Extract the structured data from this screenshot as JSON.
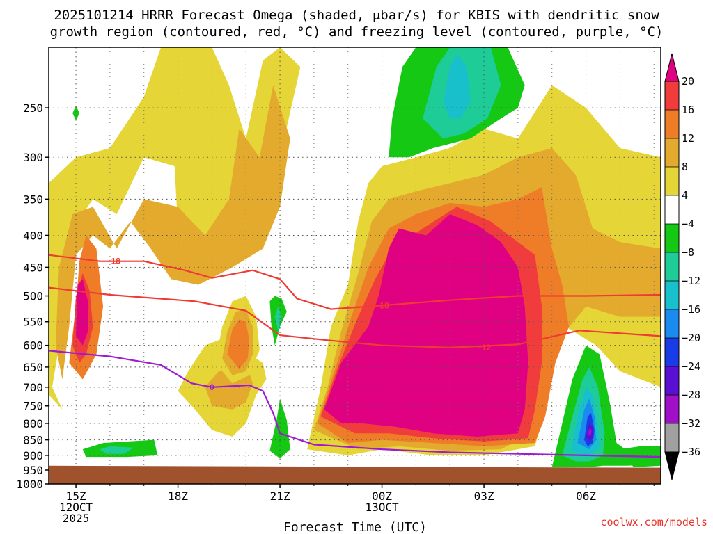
{
  "chart_data": {
    "type": "heatmap",
    "title_line1": "2025101214 HRRR Forecast Omega (shaded, μbar/s) for KBIS with dendritic snow",
    "title_line2": "growth region (contoured, red, °C) and freezing level (contoured, purple, °C)",
    "xlabel": "Forecast Time (UTC)",
    "ylabel": "",
    "credit": "coolwx.com/models",
    "y_axis": {
      "type": "pressure",
      "unit": "hPa",
      "range": [
        1000,
        200
      ],
      "ticks": [
        "250",
        "300",
        "350",
        "400",
        "450",
        "500",
        "550",
        "600",
        "650",
        "700",
        "750",
        "800",
        "850",
        "900",
        "950",
        "1000"
      ]
    },
    "x_axis": {
      "range_hours": [
        14.2,
        32.2
      ],
      "ticks": [
        {
          "hour": 15,
          "label": "15Z",
          "label2": "12OCT",
          "label3": "2025"
        },
        {
          "hour": 18,
          "label": "18Z"
        },
        {
          "hour": 21,
          "label": "21Z"
        },
        {
          "hour": 24,
          "label": "00Z",
          "label2": "13OCT"
        },
        {
          "hour": 27,
          "label": "03Z"
        },
        {
          "hour": 30,
          "label": "06Z"
        }
      ]
    },
    "colorbar": {
      "levels": [
        "20",
        "16",
        "12",
        "8",
        "4",
        "−4",
        "−8",
        "−12",
        "−16",
        "−20",
        "−24",
        "−28",
        "−32",
        "−36"
      ],
      "colors": [
        "#e00082",
        "#f03c3c",
        "#ef7d28",
        "#e3aa2e",
        "#e6d536",
        "#ffffff",
        "#14c814",
        "#1ecc98",
        "#18c0cc",
        "#1a8cf0",
        "#1a3ce6",
        "#5a10d2",
        "#a010c8",
        "#a0a0a0",
        "#000000"
      ]
    },
    "omega_fields": [
      {
        "name": "early-rise",
        "peak": 20,
        "center_hour": 15.0,
        "center_hpa": 520,
        "level_colors": [
          "#e6d536",
          "#e3aa2e",
          "#ef7d28",
          "#f03c3c",
          "#e00082"
        ]
      },
      {
        "name": "main-rise",
        "peak": 20,
        "center_hour": 25.8,
        "center_hpa": 620,
        "level_colors": [
          "#e6d536",
          "#e3aa2e",
          "#ef7d28",
          "#f03c3c",
          "#e00082"
        ]
      },
      {
        "name": "mid-rise",
        "peak": 20,
        "center_hour": 22.6,
        "center_hpa": 660,
        "level_colors": [
          "#e6d536",
          "#e3aa2e",
          "#ef7d28",
          "#f03c3c",
          "#e00082"
        ]
      },
      {
        "name": "small-rise",
        "peak": 20,
        "center_hour": 19.6,
        "center_hpa": 590,
        "level_colors": [
          "#e6d536",
          "#e3aa2e",
          "#ef7d28",
          "#f03c3c",
          "#e00082"
        ]
      },
      {
        "name": "sink-upper",
        "peak": -16,
        "center_hour": 26.0,
        "center_hpa": 235,
        "level_colors": [
          "#14c814",
          "#1ecc98",
          "#18c0cc"
        ]
      },
      {
        "name": "sink-lower",
        "peak": -32,
        "center_hour": 30.2,
        "center_hpa": 820,
        "level_colors": [
          "#14c814",
          "#1ecc98",
          "#18c0cc",
          "#1a8cf0",
          "#1a3ce6",
          "#5a10d2",
          "#a010c8"
        ]
      }
    ],
    "contours": [
      {
        "name": "dgz-top",
        "value": -18,
        "label": "−18",
        "color": "#ef3b34",
        "points": [
          [
            14.2,
            430
          ],
          [
            15.7,
            440
          ],
          [
            17.0,
            440
          ],
          [
            18.2,
            455
          ],
          [
            19.0,
            468
          ],
          [
            20.2,
            455
          ],
          [
            21.0,
            470
          ],
          [
            21.5,
            505
          ],
          [
            22.5,
            525
          ],
          [
            24.0,
            518
          ],
          [
            26.0,
            508
          ],
          [
            28.0,
            500
          ],
          [
            30.0,
            500
          ],
          [
            32.2,
            498
          ]
        ]
      },
      {
        "name": "dgz-bottom",
        "value": -12,
        "label": "−12",
        "color": "#ef3b34",
        "points": [
          [
            14.2,
            485
          ],
          [
            16.0,
            498
          ],
          [
            18.5,
            510
          ],
          [
            20.0,
            528
          ],
          [
            21.0,
            578
          ],
          [
            22.3,
            588
          ],
          [
            24.0,
            600
          ],
          [
            26.0,
            605
          ],
          [
            28.0,
            598
          ],
          [
            29.8,
            568
          ],
          [
            32.2,
            580
          ]
        ]
      },
      {
        "name": "freezing-level",
        "value": 0,
        "label": "0",
        "color": "#9f1ad2",
        "points": [
          [
            14.2,
            612
          ],
          [
            16.0,
            625
          ],
          [
            17.5,
            645
          ],
          [
            18.4,
            690
          ],
          [
            19.0,
            700
          ],
          [
            20.1,
            695
          ],
          [
            20.5,
            710
          ],
          [
            20.8,
            770
          ],
          [
            21.0,
            830
          ],
          [
            22.0,
            865
          ],
          [
            24.0,
            880
          ],
          [
            26.0,
            890
          ],
          [
            28.0,
            895
          ],
          [
            30.0,
            900
          ],
          [
            32.2,
            905
          ]
        ]
      }
    ],
    "ground": {
      "color": "#a0522d"
    }
  }
}
